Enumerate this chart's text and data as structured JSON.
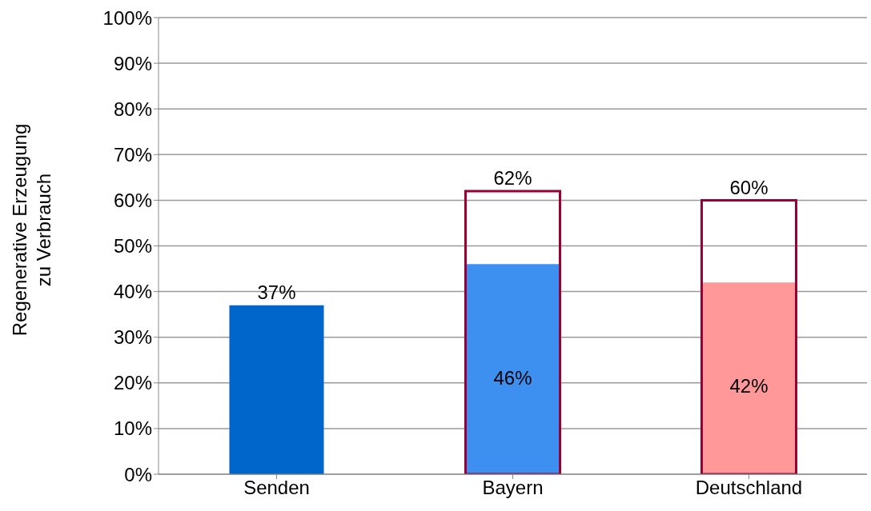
{
  "chart_data": {
    "type": "bar",
    "ylabel": "Regenerative Erzeugung\nzu Verbrauch",
    "categories": [
      "Senden",
      "Bayern",
      "Deutschland"
    ],
    "series": [
      {
        "colors": [
          "#0066cc",
          "#3d8ff0",
          "#ff9999"
        ],
        "values": [
          37,
          46,
          42
        ],
        "value_labels": [
          "37%",
          "46%",
          "42%"
        ]
      },
      {
        "color": "#990033",
        "values": [
          null,
          62,
          60
        ],
        "value_labels": [
          null,
          "62%",
          "60%"
        ]
      }
    ],
    "ylim": [
      0,
      100
    ],
    "yticks": [
      {
        "value": 0,
        "label": "0%"
      },
      {
        "value": 10,
        "label": "10%"
      },
      {
        "value": 20,
        "label": "20%"
      },
      {
        "value": 30,
        "label": "30%"
      },
      {
        "value": 40,
        "label": "40%"
      },
      {
        "value": 50,
        "label": "50%"
      },
      {
        "value": 60,
        "label": "60%"
      },
      {
        "value": 70,
        "label": "70%"
      },
      {
        "value": 80,
        "label": "80%"
      },
      {
        "value": 90,
        "label": "90%"
      },
      {
        "value": 100,
        "label": "100%"
      }
    ],
    "grid": "y",
    "legend": false
  }
}
